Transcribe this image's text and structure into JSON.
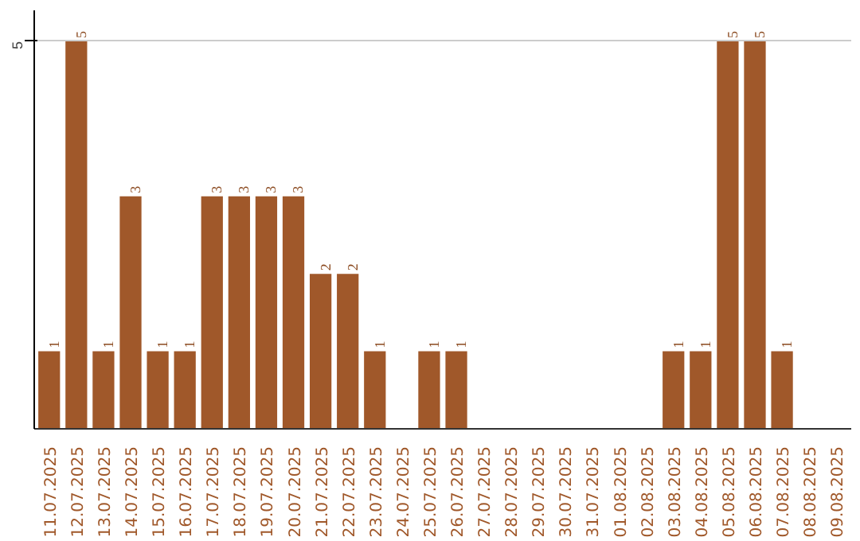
{
  "chart_data": {
    "type": "bar",
    "categories": [
      "11.07.2025",
      "12.07.2025",
      "13.07.2025",
      "14.07.2025",
      "15.07.2025",
      "16.07.2025",
      "17.07.2025",
      "18.07.2025",
      "19.07.2025",
      "20.07.2025",
      "21.07.2025",
      "22.07.2025",
      "23.07.2025",
      "24.07.2025",
      "25.07.2025",
      "26.07.2025",
      "27.07.2025",
      "28.07.2025",
      "29.07.2025",
      "30.07.2025",
      "31.07.2025",
      "01.08.2025",
      "02.08.2025",
      "03.08.2025",
      "04.08.2025",
      "05.08.2025",
      "06.08.2025",
      "07.08.2025",
      "08.08.2025",
      "09.08.2025"
    ],
    "values": [
      1,
      5,
      1,
      3,
      1,
      1,
      3,
      3,
      3,
      3,
      2,
      2,
      1,
      0,
      1,
      1,
      0,
      0,
      0,
      0,
      0,
      0,
      0,
      1,
      1,
      5,
      5,
      1,
      0,
      0
    ],
    "value_labels": [
      "1",
      "5",
      "1",
      "3",
      "1",
      "1",
      "3",
      "3",
      "3",
      "3",
      "2",
      "2",
      "1",
      null,
      "1",
      "1",
      null,
      null,
      null,
      null,
      null,
      null,
      null,
      "1",
      "1",
      "5",
      "5",
      "1",
      null,
      null
    ],
    "color": "#a0582a",
    "ylim": [
      0,
      5.4
    ],
    "yticks": [
      5
    ],
    "grid": "y"
  }
}
